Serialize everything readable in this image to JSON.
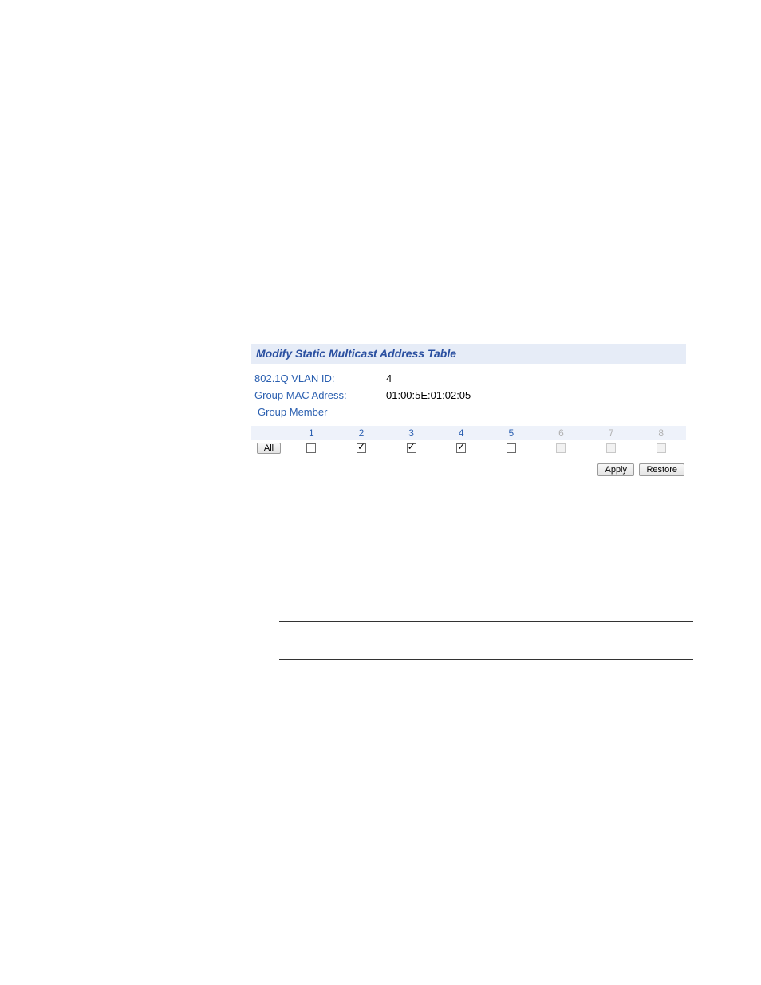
{
  "panel": {
    "title": "Modify Static Multicast Address Table",
    "vlan_label": "802.1Q VLAN ID:",
    "vlan_value": "4",
    "mac_label": "Group MAC Adress:",
    "mac_value": "01:00:5E:01:02:05",
    "member_label": "Group Member",
    "all_button": "All",
    "ports": [
      {
        "num": "1",
        "checked": false,
        "enabled": true
      },
      {
        "num": "2",
        "checked": true,
        "enabled": true
      },
      {
        "num": "3",
        "checked": true,
        "enabled": true
      },
      {
        "num": "4",
        "checked": true,
        "enabled": true
      },
      {
        "num": "5",
        "checked": false,
        "enabled": true
      },
      {
        "num": "6",
        "checked": false,
        "enabled": false
      },
      {
        "num": "7",
        "checked": false,
        "enabled": false
      },
      {
        "num": "8",
        "checked": false,
        "enabled": false
      }
    ],
    "apply_button": "Apply",
    "restore_button": "Restore"
  },
  "colors": {
    "title_bar_bg": "#e6ecf7",
    "header_bg": "#eef2fa",
    "link_color": "#2a5fb0",
    "title_color": "#2a4fa0",
    "disabled_text": "#b0b0b0"
  }
}
